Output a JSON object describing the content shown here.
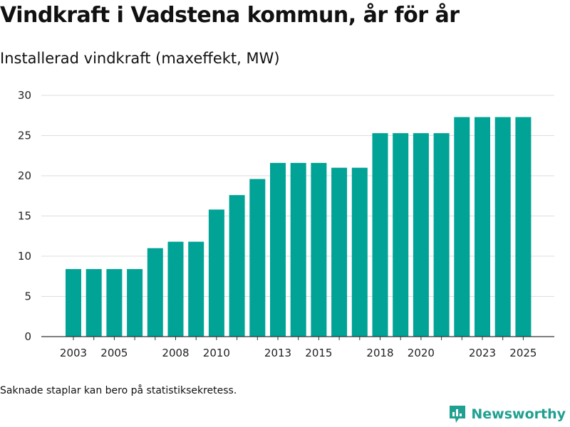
{
  "title": "Vindkraft i Vadstena kommun, år för år",
  "subtitle": "Installerad vindkraft (maxeffekt, MW)",
  "footnote": "Saknade staplar kan bero på statistiksekretess.",
  "brand": {
    "name": "Newsworthy",
    "icon": "newsworthy-logo-icon",
    "color": "#20a090"
  },
  "colors": {
    "bar": "#00a396",
    "grid": "#dddddd",
    "axis": "#333333"
  },
  "chart_data": {
    "type": "bar",
    "title": "Vindkraft i Vadstena kommun, år för år",
    "ylabel": "Installerad vindkraft (maxeffekt, MW)",
    "xlabel": "",
    "categories": [
      "2003",
      "2004",
      "2005",
      "2006",
      "2007",
      "2008",
      "2009",
      "2010",
      "2011",
      "2012",
      "2013",
      "2014",
      "2015",
      "2016",
      "2017",
      "2018",
      "2019",
      "2020",
      "2021",
      "2022",
      "2023",
      "2024",
      "2025"
    ],
    "values": [
      8.4,
      8.4,
      8.4,
      8.4,
      11.0,
      11.8,
      11.8,
      15.8,
      17.6,
      19.6,
      21.6,
      21.6,
      21.6,
      21.0,
      21.0,
      25.3,
      25.3,
      25.3,
      25.3,
      27.3,
      27.3,
      27.3,
      27.3
    ],
    "xtick_labels": [
      "2003",
      "2005",
      "2008",
      "2010",
      "2013",
      "2015",
      "2018",
      "2020",
      "2023",
      "2025"
    ],
    "yticks": [
      0,
      5,
      10,
      15,
      20,
      25,
      30
    ],
    "ylim": [
      0,
      30
    ],
    "grid": true,
    "legend": "none"
  }
}
